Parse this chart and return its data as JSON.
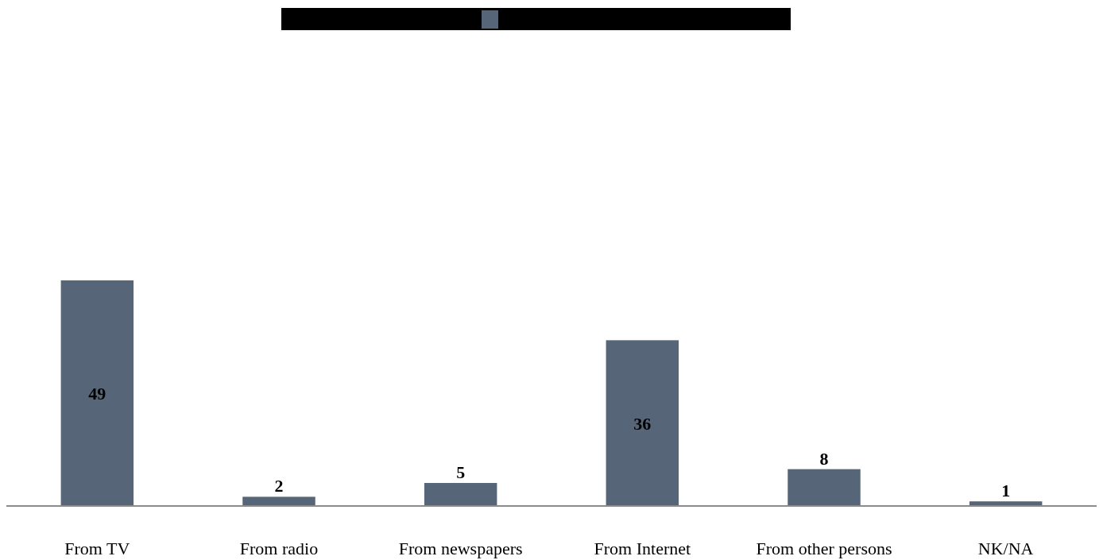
{
  "chart_data": {
    "type": "bar",
    "categories": [
      "From TV",
      "From radio",
      "From newspapers",
      "From Internet",
      "From other persons",
      "NK/NA"
    ],
    "series": [
      {
        "color": "#566577",
        "values": [
          49,
          2,
          5,
          36,
          8,
          1
        ]
      }
    ],
    "data_labels": true
  }
}
